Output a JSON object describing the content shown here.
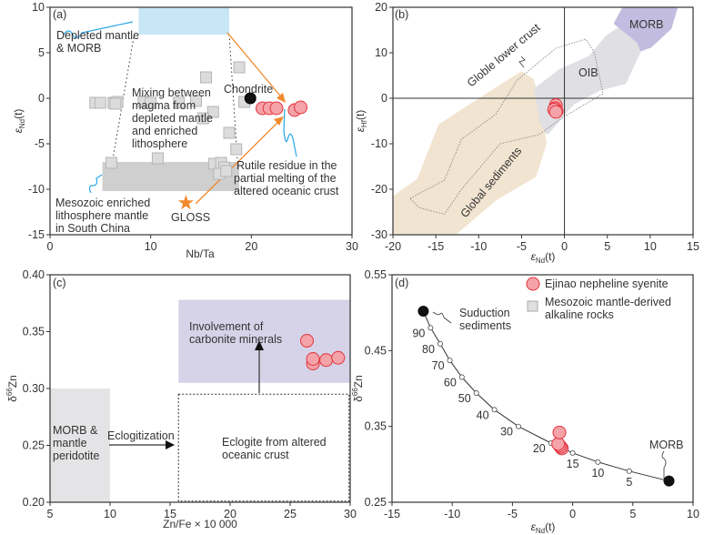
{
  "chart_data": [
    {
      "id": "a",
      "type": "scatter",
      "panel_label": "(a)",
      "xlabel": "Nb/Ta",
      "ylabel_main": "ε",
      "ylabel_sub": "Nd",
      "ylabel_tail": "(t)",
      "xlim": [
        0,
        30
      ],
      "ylim": [
        -15,
        10
      ],
      "xticks": [
        0,
        10,
        20,
        30
      ],
      "yticks": [
        -15,
        -10,
        -5,
        0,
        5,
        10
      ],
      "series": [
        {
          "name": "Mesozoic mantle-derived alkaline rocks",
          "marker": "square",
          "color": "#dcdcdc",
          "points": [
            [
              4.5,
              -0.5
            ],
            [
              5.0,
              -0.5
            ],
            [
              6.3,
              -0.5
            ],
            [
              6.7,
              -0.4
            ],
            [
              6.5,
              -0.6
            ],
            [
              9.3,
              -0.4
            ],
            [
              10,
              -0.5
            ],
            [
              12.8,
              -0.5
            ],
            [
              14.5,
              -0.3
            ],
            [
              15.5,
              2.3
            ],
            [
              16.2,
              -1.5
            ],
            [
              15.2,
              -2.2
            ],
            [
              17.8,
              -3.8
            ],
            [
              18.5,
              -5.6
            ],
            [
              18.8,
              3.4
            ],
            [
              19.3,
              -0.4
            ],
            [
              6.1,
              -7.1
            ],
            [
              10.7,
              -6.6
            ],
            [
              16.3,
              -7.2
            ],
            [
              17.0,
              -7.1
            ],
            [
              17.3,
              -7.6
            ],
            [
              16.8,
              -8.3
            ],
            [
              17.5,
              -8.0
            ]
          ]
        },
        {
          "name": "Ejinao nepheline syenite",
          "marker": "circle",
          "color": "#f4a3a8",
          "points": [
            [
              21.1,
              -1.1
            ],
            [
              21.8,
              -1.1
            ],
            [
              22.5,
              -1.1
            ],
            [
              24.3,
              -1.3
            ],
            [
              24.9,
              -1.0
            ]
          ]
        }
      ],
      "special_points": [
        {
          "name": "Chondrite",
          "x": 19.9,
          "y": 0,
          "marker": "circle",
          "color": "#111111"
        },
        {
          "name": "GLOSS",
          "x": 13.5,
          "y": -11.5,
          "marker": "star",
          "color": "#f08a2c"
        }
      ],
      "regions": [
        {
          "name": "Depleted mantle & MORB",
          "x": [
            8.8,
            17.8
          ],
          "y": [
            7,
            10
          ],
          "color": "#c7e6f6"
        },
        {
          "name": "Mesozoic enriched lithosphere mantle in South China",
          "x": [
            5.2,
            18.8
          ],
          "y": [
            -10.2,
            -7
          ],
          "color": "#cfcfcf"
        }
      ],
      "annotations": {
        "depleted_1": "Depleted mantle",
        "depleted_2": "& MORB",
        "mixing_1": "Mixing between",
        "mixing_2": "magma from",
        "mixing_3": "depleted mantle",
        "mixing_4": "and enriched",
        "mixing_5": "lithosphere",
        "chondrite": "Chondrite",
        "rutile_1": "Rutile residue in the",
        "rutile_2": "partial melting of the",
        "rutile_3": "altered oceanic crust",
        "meso_1": "Mesozoic enriched",
        "meso_2": "lithosphere mantle",
        "meso_3": "in South China",
        "gloss": "GLOSS"
      }
    },
    {
      "id": "b",
      "type": "area",
      "panel_label": "(b)",
      "xlabel_main": "ε",
      "xlabel_sub": "Nd",
      "xlabel_tail": "(t)",
      "ylabel_main": "ε",
      "ylabel_sub": "Hf",
      "ylabel_tail": "(t)",
      "xlim": [
        -20,
        15
      ],
      "ylim": [
        -30,
        20
      ],
      "xticks": [
        -20,
        -15,
        -10,
        -5,
        0,
        5,
        10,
        15
      ],
      "yticks": [
        -30,
        -20,
        -10,
        0,
        10,
        20
      ],
      "regions": [
        {
          "name": "Global sediments",
          "color": "#f1e4d0",
          "style": "fill",
          "points": [
            [
              -20,
              -22
            ],
            [
              -17,
              -18
            ],
            [
              -14.5,
              -6
            ],
            [
              -10,
              -0.5
            ],
            [
              -5,
              5.5
            ],
            [
              -3.8,
              4
            ],
            [
              -2.8,
              -2
            ],
            [
              -2.3,
              -10
            ],
            [
              -3.5,
              -17
            ],
            [
              -8,
              -22
            ],
            [
              -13,
              -30
            ],
            [
              -20,
              -30
            ]
          ]
        },
        {
          "name": "OIB",
          "color": "#e0e0e4",
          "style": "fill",
          "points": [
            [
              -3.3,
              2
            ],
            [
              -0.5,
              6
            ],
            [
              3,
              9
            ],
            [
              5,
              13.5
            ],
            [
              7,
              16
            ],
            [
              10,
              14
            ],
            [
              8.6,
              10
            ],
            [
              7,
              3.5
            ],
            [
              4,
              2
            ],
            [
              1,
              -1
            ],
            [
              -2,
              -7.5
            ],
            [
              -2.7,
              -5
            ]
          ]
        },
        {
          "name": "MORB",
          "color": "#c2bde0",
          "style": "fill",
          "points": [
            [
              6,
              16.5
            ],
            [
              7,
              20
            ],
            [
              13,
              20
            ],
            [
              12.3,
              15.5
            ],
            [
              10,
              11.5
            ],
            [
              9,
              10.8
            ],
            [
              8.6,
              12.5
            ]
          ]
        },
        {
          "name": "Globle lower crust",
          "color": "#888888",
          "style": "dotted",
          "points": [
            [
              -18,
              -22
            ],
            [
              -14,
              -18
            ],
            [
              -12,
              -9
            ],
            [
              -8,
              -3.5
            ],
            [
              -5.5,
              4
            ],
            [
              -1,
              11
            ],
            [
              2.5,
              13
            ],
            [
              3.5,
              10
            ],
            [
              4.5,
              1
            ],
            [
              0,
              -4
            ],
            [
              -3,
              -8
            ],
            [
              -7.5,
              -10
            ],
            [
              -12,
              -20
            ],
            [
              -14,
              -25.5
            ],
            [
              -17,
              -24
            ]
          ]
        }
      ],
      "series": [
        {
          "name": "Ejinao nepheline syenite",
          "marker": "circle",
          "color": "#f4a3a8",
          "points": [
            [
              -1.0,
              -1.5
            ],
            [
              -1.1,
              -2.2
            ],
            [
              -0.9,
              -2.8
            ],
            [
              -1.2,
              -2.5
            ],
            [
              -1.0,
              -3.0
            ]
          ]
        }
      ],
      "annotations": {
        "lower_crust": "Globle lower crust",
        "oib": "OIB",
        "morb": "MORB",
        "sediments": "Global sediments"
      }
    },
    {
      "id": "c",
      "type": "scatter",
      "panel_label": "(c)",
      "xlabel": "Zn/Fe  × 10 000",
      "ylabel_main": "δ",
      "ylabel_sup": "66",
      "ylabel_tail": "Zn",
      "xlim": [
        5,
        30
      ],
      "ylim": [
        0.2,
        0.4
      ],
      "xticks": [
        5,
        10,
        15,
        20,
        25,
        30
      ],
      "yticks": [
        "0.20",
        "0.25",
        "0.30",
        "0.35",
        "0.40"
      ],
      "regions": [
        {
          "name": "MORB & mantle peridotite",
          "x": [
            5,
            10
          ],
          "y": [
            0.2,
            0.3
          ],
          "color": "#e4e4e6",
          "style": "fill"
        },
        {
          "name": "Involvement of carbonite minerals",
          "x": [
            15.7,
            30
          ],
          "y": [
            0.305,
            0.378
          ],
          "color": "#d6d3e8",
          "style": "fill"
        },
        {
          "name": "Eclogite from altered oceanic crust",
          "x": [
            15.7,
            29.9
          ],
          "y": [
            0.201,
            0.295
          ],
          "color": "#333333",
          "style": "dotted"
        }
      ],
      "series": [
        {
          "name": "Ejinao nepheline syenite",
          "marker": "circle",
          "color": "#f4a3a8",
          "points": [
            [
              26.4,
              0.342
            ],
            [
              26.9,
              0.322
            ],
            [
              26.9,
              0.326
            ],
            [
              28.0,
              0.325
            ],
            [
              29.0,
              0.327
            ]
          ]
        }
      ],
      "annotations": {
        "morb_1": "MORB &",
        "morb_2": "mantle",
        "morb_3": "peridotite",
        "eclogitization": "Eclogitization",
        "carb_1": "Involvement of",
        "carb_2": "carbonite minerals",
        "eclogite_1": "Eclogite from altered",
        "eclogite_2": "oceanic crust"
      }
    },
    {
      "id": "d",
      "type": "line",
      "panel_label": "(d)",
      "xlabel_main": "ε",
      "xlabel_sub": "Nd",
      "xlabel_tail": "(t)",
      "ylabel_main": "δ",
      "ylabel_sup": "66",
      "ylabel_tail": "Zn",
      "xlim": [
        -15,
        10
      ],
      "ylim": [
        0.25,
        0.55
      ],
      "xticks": [
        -15,
        -10,
        -5,
        0,
        5,
        10
      ],
      "yticks": [
        "0.25",
        "0.35",
        "0.45",
        "0.55"
      ],
      "mixing_curve": {
        "endmembers": [
          {
            "name": "Suduction sediments",
            "x": -12.4,
            "y": 0.502
          },
          {
            "name": "MORB",
            "x": 8.0,
            "y": 0.278
          }
        ],
        "points": [
          {
            "label": "90",
            "x": -11.8,
            "y": 0.48
          },
          {
            "label": "80",
            "x": -11.0,
            "y": 0.459
          },
          {
            "label": "70",
            "x": -10.2,
            "y": 0.437
          },
          {
            "label": "60",
            "x": -9.2,
            "y": 0.415
          },
          {
            "label": "50",
            "x": -8.0,
            "y": 0.394
          },
          {
            "label": "40",
            "x": -6.5,
            "y": 0.372
          },
          {
            "label": "30",
            "x": -4.5,
            "y": 0.35
          },
          {
            "label": "20",
            "x": -1.8,
            "y": 0.328
          },
          {
            "label": "15",
            "x": 0.0,
            "y": 0.315
          },
          {
            "label": "10",
            "x": 2.1,
            "y": 0.303
          },
          {
            "label": "5",
            "x": 4.7,
            "y": 0.291
          }
        ]
      },
      "series": [
        {
          "name": "Ejinao nepheline syenite",
          "marker": "circle",
          "color": "#f4a3a8",
          "points": [
            [
              -0.9,
              0.321
            ],
            [
              -1.0,
              0.323
            ],
            [
              -1.1,
              0.325
            ],
            [
              -1.2,
              0.327
            ],
            [
              -1.1,
              0.342
            ]
          ]
        }
      ],
      "legend": {
        "placement": "top-right",
        "items": [
          "Ejinao nepheline syenite",
          "Mesozoic mantle-derived",
          "alkaline rocks"
        ]
      },
      "annotations": {
        "sed_1": "Suduction",
        "sed_2": "sediments",
        "morb": "MORB"
      }
    }
  ]
}
